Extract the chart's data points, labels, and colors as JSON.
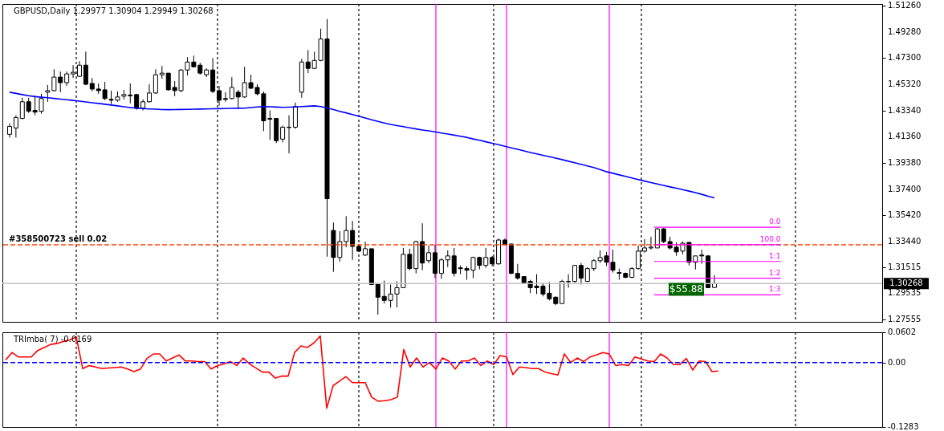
{
  "chart_data": [
    {
      "type": "candlestick",
      "title": "GBPUSD,Daily 1.29977 1.30904 1.29949 1.30268",
      "categories": [
        null,
        null,
        null,
        null,
        null,
        null,
        null,
        null,
        null,
        null,
        null,
        null,
        null,
        null,
        null,
        null,
        null,
        null,
        null,
        null,
        null,
        null,
        null,
        null,
        null,
        null,
        null,
        null,
        null,
        null,
        null,
        null,
        null,
        null,
        null,
        null,
        null,
        null,
        null,
        null,
        null,
        null,
        null,
        null,
        null,
        null,
        null,
        null,
        null,
        null,
        null,
        null,
        null,
        null,
        null,
        null,
        null,
        null,
        null,
        null,
        null,
        null,
        null,
        null,
        null,
        null,
        null,
        null,
        null,
        null,
        null,
        null,
        null,
        null,
        null,
        null,
        null,
        null,
        null,
        null,
        null,
        null,
        null,
        null,
        null,
        null,
        null,
        null,
        null,
        null,
        null,
        null,
        null,
        null,
        null,
        null,
        null,
        null,
        null,
        null,
        null,
        null,
        null,
        null,
        null,
        null,
        null,
        null,
        null,
        null,
        null,
        null
      ],
      "ohlc": [
        [
          1.4154,
          1.4238,
          1.413,
          1.4214
        ],
        [
          1.4202,
          1.4298,
          1.413,
          1.428
        ],
        [
          1.4274,
          1.443,
          1.4268,
          1.44
        ],
        [
          1.44,
          1.443,
          1.4316,
          1.4328
        ],
        [
          1.4334,
          1.4448,
          1.4298,
          1.4322
        ],
        [
          1.4328,
          1.446,
          1.431,
          1.4424
        ],
        [
          1.4472,
          1.4526,
          1.44,
          1.4484
        ],
        [
          1.4484,
          1.4646,
          1.4478,
          1.4586
        ],
        [
          1.4586,
          1.4628,
          1.4472,
          1.4544
        ],
        [
          1.4544,
          1.4628,
          1.452,
          1.461
        ],
        [
          1.461,
          1.4676,
          1.458,
          1.4622
        ],
        [
          1.4592,
          1.4706,
          1.4586,
          1.4676
        ],
        [
          1.4676,
          1.4778,
          1.4526,
          1.4532
        ],
        [
          1.4538,
          1.458,
          1.4478,
          1.4496
        ],
        [
          1.4496,
          1.4538,
          1.446,
          1.4484
        ],
        [
          1.449,
          1.455,
          1.4412,
          1.4424
        ],
        [
          1.4418,
          1.4484,
          1.4382,
          1.4412
        ],
        [
          1.4412,
          1.4478,
          1.44,
          1.4436
        ],
        [
          1.4442,
          1.449,
          1.4418,
          1.4454
        ],
        [
          1.4451,
          1.4538,
          1.4388,
          1.4445
        ],
        [
          1.4454,
          1.446,
          1.434,
          1.4352
        ],
        [
          1.4352,
          1.4418,
          1.4334,
          1.44
        ],
        [
          1.44,
          1.4532,
          1.4394,
          1.4466
        ],
        [
          1.4466,
          1.4646,
          1.446,
          1.4604
        ],
        [
          1.4604,
          1.467,
          1.4574,
          1.4616
        ],
        [
          1.4616,
          1.4616,
          1.4484,
          1.449
        ],
        [
          1.4508,
          1.4556,
          1.4442,
          1.4484
        ],
        [
          1.4484,
          1.4646,
          1.4472,
          1.464
        ],
        [
          1.464,
          1.4736,
          1.4598,
          1.47
        ],
        [
          1.47,
          1.4748,
          1.4658,
          1.4664
        ],
        [
          1.4676,
          1.4694,
          1.4604,
          1.4616
        ],
        [
          1.4604,
          1.4652,
          1.4586,
          1.464
        ],
        [
          1.464,
          1.473,
          1.4466,
          1.4478
        ],
        [
          1.4484,
          1.452,
          1.437,
          1.4412
        ],
        [
          1.4424,
          1.4472,
          1.44,
          1.4418
        ],
        [
          1.4424,
          1.4586,
          1.4418,
          1.4508
        ],
        [
          1.4472,
          1.449,
          1.4352,
          1.4436
        ],
        [
          1.4436,
          1.4664,
          1.443,
          1.4544
        ],
        [
          1.4544,
          1.4604,
          1.4496,
          1.4502
        ],
        [
          1.4508,
          1.4532,
          1.4448,
          1.446
        ],
        [
          1.446,
          1.4478,
          1.4178,
          1.4256
        ],
        [
          1.4274,
          1.4334,
          1.4112,
          1.4268
        ],
        [
          1.4274,
          1.4274,
          1.4088,
          1.4106
        ],
        [
          1.4118,
          1.422,
          1.4094,
          1.4208
        ],
        [
          1.4208,
          1.4298,
          1.401,
          1.4205
        ],
        [
          1.4208,
          1.4394,
          1.4196,
          1.4364
        ],
        [
          1.4472,
          1.4724,
          1.443,
          1.47
        ],
        [
          1.47,
          1.479,
          1.4616,
          1.4652
        ],
        [
          1.4652,
          1.4778,
          1.4646,
          1.4712
        ],
        [
          1.4712,
          1.4952,
          1.4706,
          1.4874
        ],
        [
          1.4874,
          1.5024,
          1.323,
          1.3668
        ],
        [
          1.3428,
          1.3488,
          1.3116,
          1.3224
        ],
        [
          1.3224,
          1.3422,
          1.3194,
          1.3344
        ],
        [
          1.3344,
          1.3536,
          1.3302,
          1.3428
        ],
        [
          1.3428,
          1.35,
          1.3206,
          1.3308
        ],
        [
          1.3308,
          1.3326,
          1.3266,
          1.3272
        ],
        [
          1.3242,
          1.3344,
          1.3236,
          1.329
        ],
        [
          1.329,
          1.329,
          1.302,
          1.302
        ],
        [
          1.3026,
          1.3026,
          1.2792,
          1.2924
        ],
        [
          1.293,
          1.305,
          1.2876,
          1.29
        ],
        [
          1.29,
          1.302,
          1.2846,
          1.2948
        ],
        [
          1.2948,
          1.3044,
          1.2846,
          1.2996
        ],
        [
          1.2996,
          1.3296,
          1.2996,
          1.3248
        ],
        [
          1.3248,
          1.329,
          1.3128,
          1.314
        ],
        [
          1.314,
          1.335,
          1.3104,
          1.3344
        ],
        [
          1.3344,
          1.3482,
          1.3128,
          1.3182
        ],
        [
          1.32,
          1.3314,
          1.3182,
          1.326
        ],
        [
          1.326,
          1.332,
          1.3068,
          1.3104
        ],
        [
          1.3104,
          1.3218,
          1.3062,
          1.3206
        ],
        [
          1.3206,
          1.3278,
          1.3152,
          1.3236
        ],
        [
          1.3236,
          1.3296,
          1.308,
          1.3104
        ],
        [
          1.3146,
          1.3164,
          1.3098,
          1.314
        ],
        [
          1.314,
          1.3158,
          1.3056,
          1.3128
        ],
        [
          1.3128,
          1.323,
          1.3068,
          1.3224
        ],
        [
          1.3224,
          1.323,
          1.3134,
          1.3164
        ],
        [
          1.3164,
          1.3296,
          1.3146,
          1.3224
        ],
        [
          1.3224,
          1.3236,
          1.3158,
          1.3176
        ],
        [
          1.3176,
          1.3368,
          1.317,
          1.3356
        ],
        [
          1.3356,
          1.3368,
          1.332,
          1.332
        ],
        [
          1.3326,
          1.3326,
          1.3098,
          1.3104
        ],
        [
          1.3104,
          1.3176,
          1.3056,
          1.3068
        ],
        [
          1.308,
          1.308,
          1.3026,
          1.3032
        ],
        [
          1.3044,
          1.3056,
          1.2954,
          1.2996
        ],
        [
          1.3008,
          1.3098,
          1.2948,
          1.2996
        ],
        [
          1.3008,
          1.3032,
          1.293,
          1.2948
        ],
        [
          1.2954,
          1.3038,
          1.29,
          1.2912
        ],
        [
          1.2924,
          1.293,
          1.2864,
          1.2876
        ],
        [
          1.2876,
          1.3056,
          1.2876,
          1.3044
        ],
        [
          1.3044,
          1.3098,
          1.2996,
          1.3041
        ],
        [
          1.3044,
          1.3164,
          1.3032,
          1.3164
        ],
        [
          1.3164,
          1.3182,
          1.302,
          1.3068
        ],
        [
          1.3044,
          1.3152,
          1.3038,
          1.314
        ],
        [
          1.314,
          1.3212,
          1.3122,
          1.32
        ],
        [
          1.32,
          1.3278,
          1.3182,
          1.3224
        ],
        [
          1.3236,
          1.3266,
          1.3158,
          1.3188
        ],
        [
          1.3188,
          1.3284,
          1.311,
          1.3128
        ],
        [
          1.311,
          1.314,
          1.3056,
          1.3104
        ],
        [
          1.3104,
          1.311,
          1.3068,
          1.3074
        ],
        [
          1.3074,
          1.3152,
          1.3068,
          1.314
        ],
        [
          1.314,
          1.3314,
          1.3134,
          1.3272
        ],
        [
          1.3272,
          1.3362,
          1.326,
          1.3296
        ],
        [
          1.3296,
          1.338,
          1.3284,
          1.3302
        ],
        [
          1.3296,
          1.3446,
          1.3296,
          1.344
        ],
        [
          1.344,
          1.3446,
          1.3332,
          1.3344
        ],
        [
          1.3344,
          1.338,
          1.3284,
          1.3296
        ],
        [
          1.3302,
          1.3338,
          1.3236,
          1.3266
        ],
        [
          1.3272,
          1.3344,
          1.3248,
          1.3332
        ],
        [
          1.3338,
          1.3338,
          1.3164,
          1.3188
        ],
        [
          1.3188,
          1.3236,
          1.3134,
          1.3236
        ],
        [
          1.3242,
          1.3284,
          1.3176,
          1.3236
        ],
        [
          1.3236,
          1.3242,
          1.2996,
          1.2996
        ],
        [
          1.29977,
          1.30904,
          1.29949,
          1.30268
        ]
      ],
      "colors": [
        "#ffffff",
        "#ffffff",
        "#ffffff",
        "#000000",
        "#000000",
        "#ffffff",
        "#ffffff",
        "#ffffff",
        "#000000",
        "#ffffff",
        "#ffffff",
        "#ffffff",
        "#000000",
        "#000000",
        "#000000",
        "#000000",
        "#000000",
        "#ffffff",
        "#ffffff",
        "#000000",
        "#000000",
        "#ffffff",
        "#ffffff",
        "#ffffff",
        "#ffffff",
        "#000000",
        "#000000",
        "#ffffff",
        "#ffffff",
        "#000000",
        "#000000",
        "#ffffff",
        "#000000",
        "#000000",
        "#000000",
        "#ffffff",
        "#000000",
        "#ffffff",
        "#000000",
        "#000000",
        "#000000",
        "#000000",
        "#000000",
        "#ffffff",
        "#000000",
        "#ffffff",
        "#ffffff",
        "#000000",
        "#ffffff",
        "#ffffff",
        "#000000",
        "#000000",
        "#ffffff",
        "#ffffff",
        "#000000",
        "#000000",
        "#ffffff",
        "#000000",
        "#000000",
        "#000000",
        "#ffffff",
        "#ffffff",
        "#ffffff",
        "#000000",
        "#ffffff",
        "#000000",
        "#ffffff",
        "#000000",
        "#ffffff",
        "#ffffff",
        "#000000",
        "#000000",
        "#000000",
        "#ffffff",
        "#000000",
        "#ffffff",
        "#000000",
        "#ffffff",
        "#000000",
        "#000000",
        "#000000",
        "#000000",
        "#000000",
        "#000000",
        "#000000",
        "#000000",
        "#000000",
        "#ffffff",
        "#000000",
        "#ffffff",
        "#000000",
        "#ffffff",
        "#ffffff",
        "#ffffff",
        "#000000",
        "#000000",
        "#000000",
        "#000000",
        "#ffffff",
        "#ffffff",
        "#ffffff",
        "#ffffff",
        "#ffffff",
        "#000000",
        "#000000",
        "#000000",
        "#ffffff",
        "#000000",
        "#ffffff",
        "#000000",
        "#000000",
        "#ffffff"
      ],
      "series": [
        {
          "type": "line",
          "color": "#0000ff",
          "values": [
            1.4472,
            1.4463,
            1.4454,
            1.4446,
            1.4439,
            1.4434,
            1.443,
            1.4425,
            1.442,
            1.4415,
            1.441,
            1.4405,
            1.4399,
            1.4393,
            1.4387,
            1.4381,
            1.4375,
            1.4369,
            1.4362,
            1.4356,
            1.4351,
            1.4349,
            1.4346,
            1.4344,
            1.4341,
            1.434,
            1.4341,
            1.4342,
            1.4343,
            1.4344,
            1.4345,
            1.4346,
            1.4347,
            1.4348,
            1.4349,
            1.435,
            1.4351,
            1.4352,
            1.4356,
            1.4361,
            1.4363,
            1.4362,
            1.436,
            1.4358,
            1.4359,
            1.4361,
            1.4364,
            1.4366,
            1.4369,
            1.4364,
            1.4353,
            1.4341,
            1.4328,
            1.4316,
            1.4303,
            1.4291,
            1.4277,
            1.4264,
            1.4252,
            1.424,
            1.4229,
            1.422,
            1.4212,
            1.4203,
            1.4195,
            1.4187,
            1.418,
            1.4173,
            1.4164,
            1.4156,
            1.4148,
            1.4139,
            1.4131,
            1.4119,
            1.4109,
            1.4098,
            1.4087,
            1.4076,
            1.4064,
            1.4052,
            1.4041,
            1.4029,
            1.4017,
            1.4006,
            1.3995,
            1.3985,
            1.3974,
            1.3963,
            1.3951,
            1.3939,
            1.3927,
            1.3915,
            1.3903,
            1.3888,
            1.3872,
            1.386,
            1.3848,
            1.3836,
            1.3824,
            1.3812,
            1.3801,
            1.379,
            1.3779,
            1.3768,
            1.3757,
            1.3747,
            1.3736,
            1.3725,
            1.3714,
            1.3701,
            1.3687,
            1.3674
          ]
        }
      ],
      "ref_lines": [
        {
          "axis": "y",
          "value": 1.332,
          "label": "#358500723 sell 0.02",
          "color": "#ff4500",
          "line_style": "dashed"
        },
        {
          "axis": "y",
          "value": 1.30268,
          "label": "1.30268",
          "color": "#c0c0c0",
          "line_style": "solid"
        },
        {
          "axis": "y",
          "value": 1.3452,
          "color": "#ff00ff"
        },
        {
          "axis": "y",
          "value": 1.332,
          "color": "#ff00ff"
        },
        {
          "axis": "y",
          "value": 1.3194,
          "label": "1:1",
          "color": "#ff00ff"
        },
        {
          "axis": "y",
          "value": 1.3068,
          "label": "1:2",
          "color": "#ff00ff"
        },
        {
          "axis": "y",
          "value": 1.2942,
          "label": "1:3",
          "color": "#ff00ff"
        }
      ],
      "annotations": [
        {
          "text": "$55.88",
          "y": 1.2984
        },
        {
          "text": "0.0",
          "y": 1.3452
        },
        {
          "text": "100.0",
          "y": 1.332
        }
      ],
      "ylim": [
        1.2738,
        1.5138
      ],
      "yticks": [
        {
          "value": 1.5126,
          "label": "1.51260"
        },
        {
          "value": 1.4928,
          "label": "1.49280"
        },
        {
          "value": 1.473,
          "label": "1.47300"
        },
        {
          "value": 1.4532,
          "label": "1.45320"
        },
        {
          "value": 1.4334,
          "label": "1.43340"
        },
        {
          "value": 1.4136,
          "label": "1.41360"
        },
        {
          "value": 1.3938,
          "label": "1.39380"
        },
        {
          "value": 1.374,
          "label": "1.37400"
        },
        {
          "value": 1.3542,
          "label": "1.35420"
        },
        {
          "value": 1.3344,
          "label": "1.33440"
        },
        {
          "value": 1.31515,
          "label": "1.31515"
        },
        {
          "value": 1.29535,
          "label": "1.29535"
        },
        {
          "value": 1.27555,
          "label": "1.27555"
        }
      ],
      "grid": "x",
      "tick_labels": "y"
    },
    {
      "type": "line",
      "title": "TRImba( 7) -0.0169",
      "categories": [
        null,
        null,
        null,
        null,
        null,
        null,
        null,
        null,
        null,
        null,
        null,
        null,
        null,
        null,
        null,
        null,
        null,
        null,
        null,
        null,
        null,
        null,
        null,
        null,
        null,
        null,
        null,
        null,
        null,
        null,
        null,
        null,
        null,
        null,
        null,
        null,
        null,
        null,
        null,
        null,
        null,
        null,
        null,
        null,
        null,
        null,
        null,
        null,
        null,
        null,
        null,
        null,
        null,
        null,
        null,
        null,
        null,
        null,
        null,
        null,
        null,
        null,
        null,
        null,
        null,
        null,
        null,
        null,
        null,
        null,
        null,
        null,
        null,
        null,
        null,
        null,
        null,
        null,
        null,
        null,
        null,
        null,
        null,
        null,
        null,
        null,
        null,
        null,
        null,
        null,
        null,
        null,
        null,
        null,
        null,
        null,
        null,
        null,
        null,
        null,
        null,
        null,
        null,
        null,
        null,
        null,
        null,
        null,
        null,
        null,
        null,
        null
      ],
      "series": [
        {
          "color": "#ff0000",
          "values": [
            0.005,
            0.02,
            0.011,
            0.011,
            0.011,
            0.024,
            0.03,
            0.036,
            0.038,
            0.042,
            0.045,
            0.051,
            -0.012,
            -0.006,
            -0.009,
            -0.012,
            -0.011,
            -0.01,
            -0.009,
            -0.013,
            -0.018,
            -0.013,
            0.008,
            0.017,
            0.017,
            0.003,
            0.009,
            0.015,
            0.003,
            0.003,
            0.002,
            0.002,
            -0.013,
            -0.006,
            -0.003,
            0.002,
            -0.006,
            0.009,
            -0.003,
            -0.011,
            -0.019,
            -0.019,
            -0.031,
            -0.027,
            -0.027,
            0.02,
            0.033,
            0.03,
            0.039,
            0.053,
            -0.091,
            -0.046,
            -0.037,
            -0.028,
            -0.04,
            -0.04,
            -0.04,
            -0.069,
            -0.077,
            -0.076,
            -0.074,
            -0.069,
            0.026,
            -0.009,
            0.009,
            -0.009,
            0.0,
            -0.013,
            0.009,
            0.003,
            -0.013,
            0.003,
            0.003,
            0.009,
            -0.006,
            0.003,
            -0.004,
            0.014,
            0.011,
            -0.024,
            -0.009,
            -0.01,
            -0.012,
            -0.012,
            -0.019,
            -0.022,
            -0.025,
            0.017,
            0.0,
            0.009,
            0.002,
            0.011,
            0.015,
            0.02,
            0.017,
            -0.006,
            -0.004,
            -0.006,
            0.011,
            0.007,
            0.003,
            0.002,
            0.017,
            0.009,
            -0.004,
            -0.004,
            0.008,
            -0.015,
            0.003,
            0.002,
            -0.018,
            -0.0169
          ]
        }
      ],
      "ref_lines": [
        {
          "axis": "y",
          "value": 0,
          "color": "#0000ff",
          "line_style": "dashed"
        }
      ],
      "ylim": [
        -0.1283,
        0.0602
      ],
      "yticks": [
        0.0602,
        {
          "value": 0,
          "label": "0.00"
        },
        -0.1283
      ],
      "grid": "x",
      "tick_labels": "y"
    }
  ]
}
